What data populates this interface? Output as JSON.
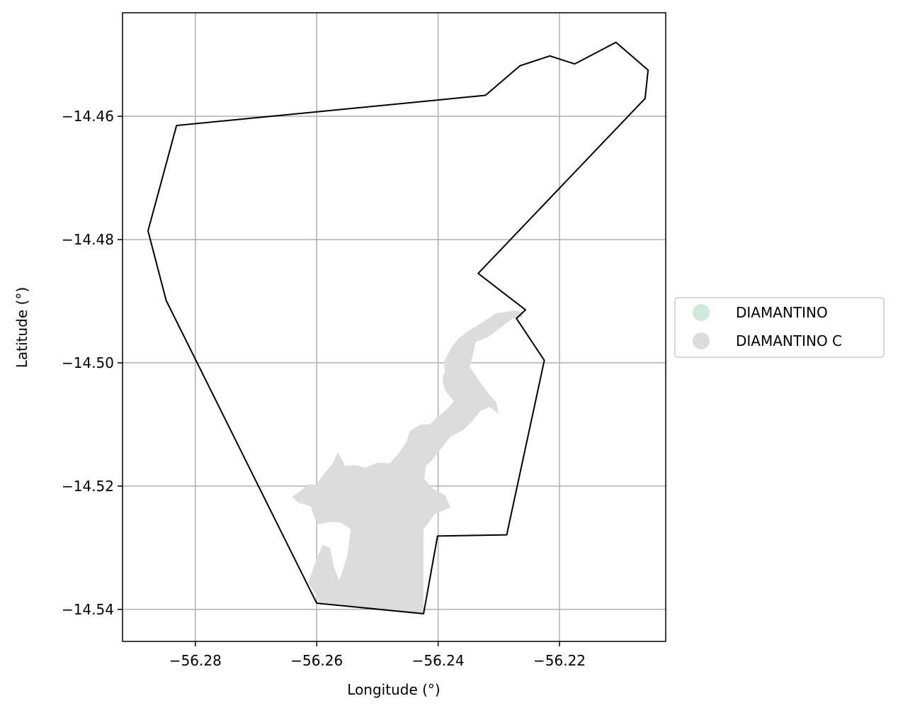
{
  "chart_data": {
    "type": "map",
    "xlabel": "Longitude (°)",
    "ylabel": "Latitude (°)",
    "xlim": [
      -56.292,
      -56.2025
    ],
    "ylim": [
      -14.5452,
      -14.4432
    ],
    "xticks": [
      -56.28,
      -56.26,
      -56.24,
      -56.22
    ],
    "yticks": [
      -14.46,
      -14.48,
      -14.5,
      -14.52,
      -14.54
    ],
    "xtick_labels": [
      "−56.28",
      "−56.26",
      "−56.24",
      "−56.22"
    ],
    "ytick_labels": [
      "−14.46",
      "−14.48",
      "−14.50",
      "−14.52",
      "−14.54"
    ],
    "grid": true,
    "legend_placement": "center-right outside",
    "legend": [
      {
        "label": "DIAMANTINO",
        "color": "#cdeadb"
      },
      {
        "label": "DIAMANTINO C",
        "color": "#dcdcdc"
      }
    ],
    "boundary": {
      "stroke": "#000000",
      "coords": [
        [
          -56.2831,
          -14.4615
        ],
        [
          -56.2322,
          -14.4566
        ],
        [
          -56.2265,
          -14.4518
        ],
        [
          -56.2216,
          -14.4502
        ],
        [
          -56.2175,
          -14.4515
        ],
        [
          -56.2107,
          -14.448
        ],
        [
          -56.2054,
          -14.4525
        ],
        [
          -56.2059,
          -14.4571
        ],
        [
          -56.2334,
          -14.4855
        ],
        [
          -56.2256,
          -14.4914
        ],
        [
          -56.2271,
          -14.4928
        ],
        [
          -56.2225,
          -14.4996
        ],
        [
          -56.2287,
          -14.5279
        ],
        [
          -56.2401,
          -14.5281
        ],
        [
          -56.2424,
          -14.5407
        ],
        [
          -56.26,
          -14.539
        ],
        [
          -56.2848,
          -14.4899
        ],
        [
          -56.2878,
          -14.4786
        ],
        [
          -56.2831,
          -14.4615
        ]
      ]
    },
    "urban_area": {
      "fill": "#dcdcdc",
      "coords": [
        [
          -56.2596,
          -14.5385
        ],
        [
          -56.2614,
          -14.5357
        ],
        [
          -56.2601,
          -14.532
        ],
        [
          -56.259,
          -14.5295
        ],
        [
          -56.2578,
          -14.53
        ],
        [
          -56.2572,
          -14.533
        ],
        [
          -56.2563,
          -14.5353
        ],
        [
          -56.2558,
          -14.534
        ],
        [
          -56.2549,
          -14.531
        ],
        [
          -56.2544,
          -14.527
        ],
        [
          -56.2559,
          -14.526
        ],
        [
          -56.2575,
          -14.5258
        ],
        [
          -56.2597,
          -14.5262
        ],
        [
          -56.2603,
          -14.5253
        ],
        [
          -56.261,
          -14.5233
        ],
        [
          -56.263,
          -14.5227
        ],
        [
          -56.2641,
          -14.5218
        ],
        [
          -56.2627,
          -14.5208
        ],
        [
          -56.2614,
          -14.5197
        ],
        [
          -56.2601,
          -14.5198
        ],
        [
          -56.2588,
          -14.518
        ],
        [
          -56.2575,
          -14.5165
        ],
        [
          -56.2565,
          -14.5145
        ],
        [
          -56.2553,
          -14.5167
        ],
        [
          -56.2537,
          -14.5166
        ],
        [
          -56.252,
          -14.517
        ],
        [
          -56.25,
          -14.5162
        ],
        [
          -56.248,
          -14.5163
        ],
        [
          -56.2465,
          -14.5147
        ],
        [
          -56.2453,
          -14.513
        ],
        [
          -56.2446,
          -14.511
        ],
        [
          -56.2429,
          -14.51
        ],
        [
          -56.2414,
          -14.51
        ],
        [
          -56.24,
          -14.5087
        ],
        [
          -56.2386,
          -14.5076
        ],
        [
          -56.2374,
          -14.5062
        ],
        [
          -56.2385,
          -14.505
        ],
        [
          -56.239,
          -14.504
        ],
        [
          -56.2393,
          -14.5025
        ],
        [
          -56.2389,
          -14.5015
        ],
        [
          -56.239,
          -14.4998
        ],
        [
          -56.2377,
          -14.4973
        ],
        [
          -56.2366,
          -14.496
        ],
        [
          -56.235,
          -14.4948
        ],
        [
          -56.2328,
          -14.4935
        ],
        [
          -56.2305,
          -14.492
        ],
        [
          -56.2275,
          -14.4915
        ],
        [
          -56.226,
          -14.4918
        ],
        [
          -56.2262,
          -14.4927
        ],
        [
          -56.2276,
          -14.4927
        ],
        [
          -56.2317,
          -14.4958
        ],
        [
          -56.2338,
          -14.4966
        ],
        [
          -56.2345,
          -14.4996
        ],
        [
          -56.2348,
          -14.5007
        ],
        [
          -56.2318,
          -14.5049
        ],
        [
          -56.2304,
          -14.5064
        ],
        [
          -56.23,
          -14.5083
        ],
        [
          -56.2315,
          -14.5072
        ],
        [
          -56.233,
          -14.5078
        ],
        [
          -56.2345,
          -14.5096
        ],
        [
          -56.236,
          -14.511
        ],
        [
          -56.238,
          -14.512
        ],
        [
          -56.2396,
          -14.514
        ],
        [
          -56.241,
          -14.5158
        ],
        [
          -56.242,
          -14.5167
        ],
        [
          -56.2423,
          -14.5188
        ],
        [
          -56.2409,
          -14.5204
        ],
        [
          -56.2388,
          -14.5215
        ],
        [
          -56.238,
          -14.5235
        ],
        [
          -56.2405,
          -14.5245
        ],
        [
          -56.2424,
          -14.527
        ],
        [
          -56.2424,
          -14.5325
        ],
        [
          -56.2424,
          -14.5407
        ],
        [
          -56.26,
          -14.539
        ],
        [
          -56.2596,
          -14.5385
        ]
      ]
    }
  }
}
